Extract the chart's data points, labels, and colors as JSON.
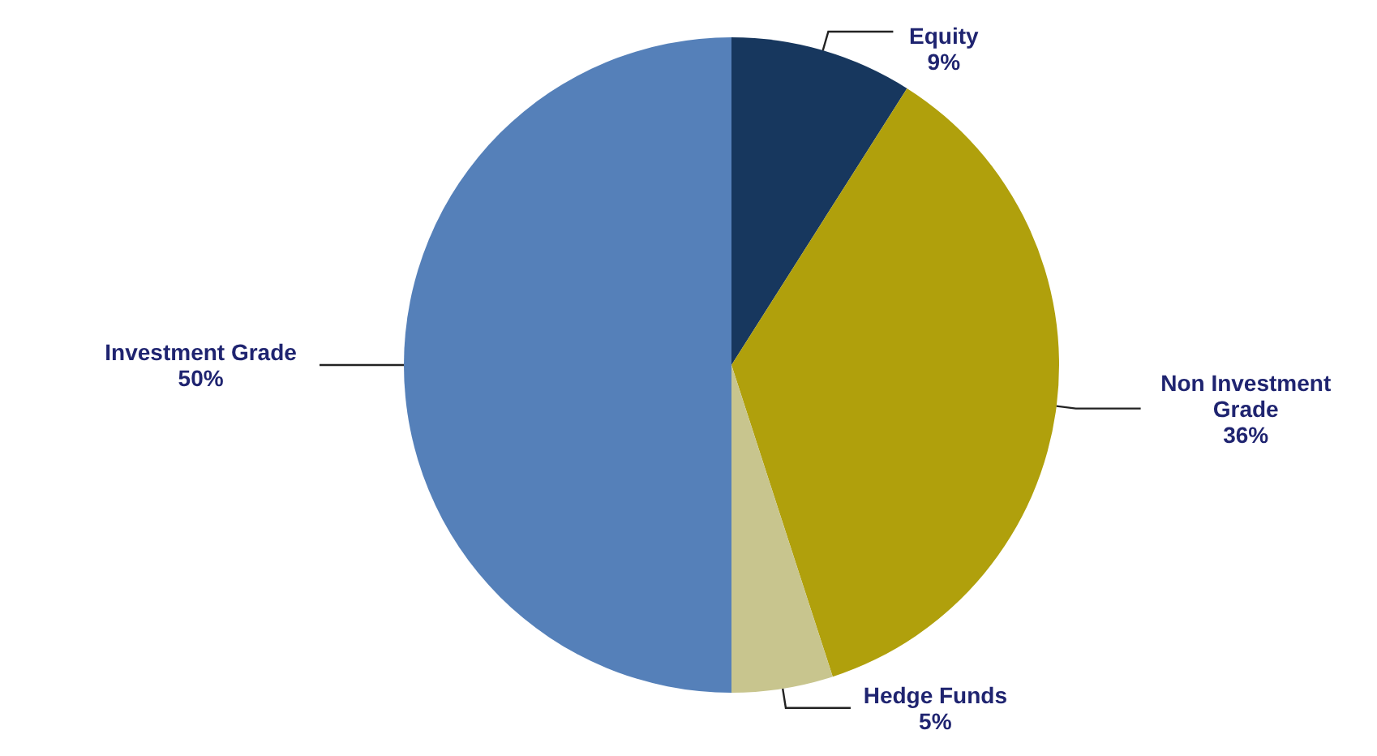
{
  "chart_data": {
    "type": "pie",
    "categories": [
      "Equity",
      "Non Investment Grade",
      "Hedge Funds",
      "Investment Grade"
    ],
    "values": [
      9,
      36,
      5,
      50
    ],
    "value_labels": [
      "9%",
      "36%",
      "5%",
      "50%"
    ],
    "colors": [
      "#17375e",
      "#b0a00c",
      "#c8c58e",
      "#5580b9"
    ]
  }
}
